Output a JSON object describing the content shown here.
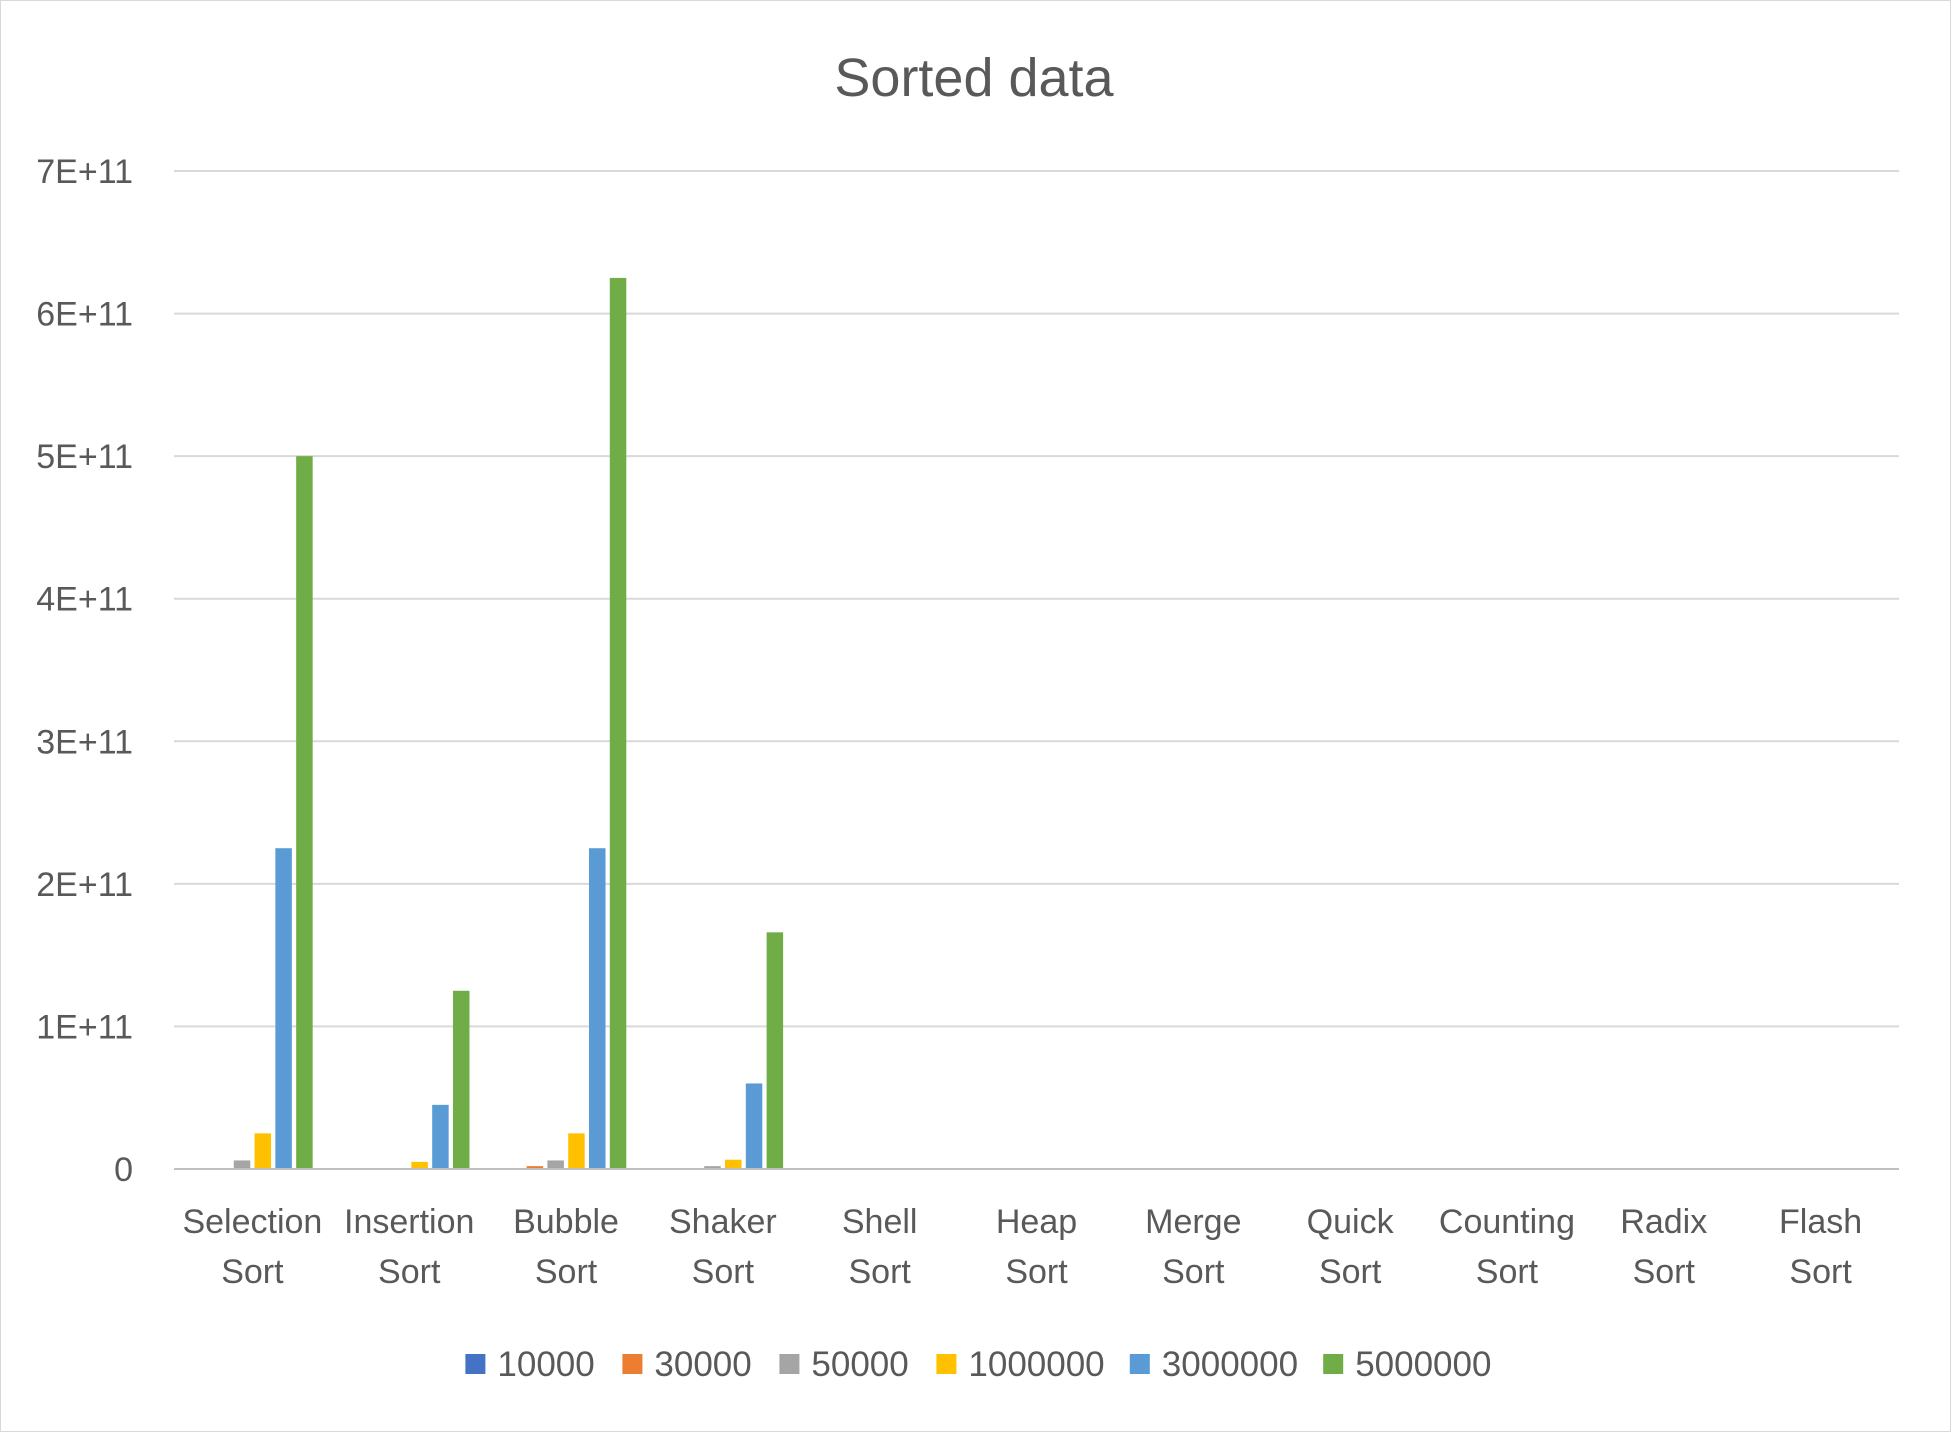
{
  "chart_data": {
    "type": "bar",
    "title": "Sorted data",
    "xlabel": "",
    "ylabel": "",
    "ylim": [
      0,
      700000000000
    ],
    "yticks": [
      "0",
      "1E+11",
      "2E+11",
      "3E+11",
      "4E+11",
      "5E+11",
      "6E+11",
      "7E+11"
    ],
    "grid": true,
    "legend_position": "bottom",
    "categories": [
      [
        "Selection",
        "Sort"
      ],
      [
        "Insertion",
        "Sort"
      ],
      [
        "Bubble",
        "Sort"
      ],
      [
        "Shaker",
        "Sort"
      ],
      [
        "Shell",
        "Sort"
      ],
      [
        "Heap",
        "Sort"
      ],
      [
        "Merge",
        "Sort"
      ],
      [
        "Quick",
        "Sort"
      ],
      [
        "Counting",
        "Sort"
      ],
      [
        "Radix",
        "Sort"
      ],
      [
        "Flash",
        "Sort"
      ]
    ],
    "series": [
      {
        "name": "10000",
        "color": "#4472c4",
        "values": [
          50000000,
          0,
          50000000,
          12000000,
          0,
          0,
          0,
          0,
          0,
          0,
          0
        ]
      },
      {
        "name": "30000",
        "color": "#ed7d31",
        "values": [
          450000000,
          0,
          2000000000,
          150000000,
          0,
          0,
          0,
          0,
          0,
          0,
          0
        ]
      },
      {
        "name": "50000",
        "color": "#a5a5a5",
        "values": [
          6000000000,
          20000000,
          6000000000,
          2000000000,
          0,
          0,
          0,
          0,
          0,
          0,
          0
        ]
      },
      {
        "name": "1000000",
        "color": "#ffc000",
        "values": [
          25000000000,
          5000000000,
          25000000000,
          6500000000,
          0,
          0,
          0,
          0,
          0,
          0,
          0
        ]
      },
      {
        "name": "3000000",
        "color": "#5b9bd5",
        "values": [
          225000000000,
          45000000000,
          225000000000,
          60000000000,
          0,
          0,
          0,
          0,
          0,
          0,
          0
        ]
      },
      {
        "name": "5000000",
        "color": "#70ad47",
        "values": [
          500000000000,
          125000000000,
          625000000000,
          166000000000,
          0,
          0,
          0,
          0,
          0,
          0,
          0
        ]
      }
    ]
  }
}
